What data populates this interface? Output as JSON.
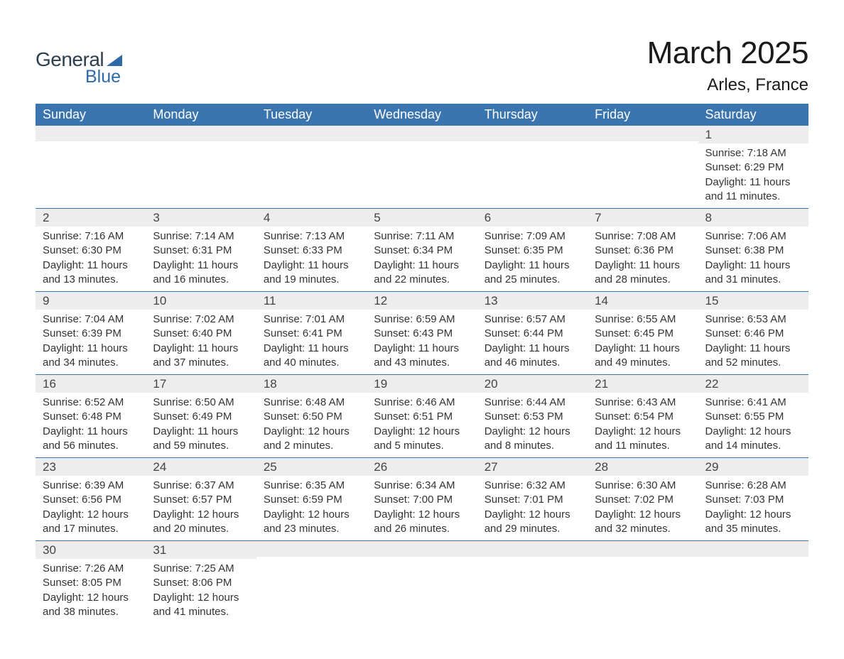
{
  "logo": {
    "text_general": "General",
    "text_blue": "Blue"
  },
  "title": "March 2025",
  "location": "Arles, France",
  "colors": {
    "header_bg": "#3a75b0",
    "header_text": "#ffffff",
    "daynum_bg": "#ededed",
    "border": "#3a75b0",
    "logo_accent": "#2f6aa8",
    "page_bg": "#ffffff"
  },
  "typography": {
    "title_fontsize": 44,
    "location_fontsize": 24,
    "weekday_fontsize": 18,
    "daynum_fontsize": 17,
    "body_fontsize": 15
  },
  "weekdays": [
    "Sunday",
    "Monday",
    "Tuesday",
    "Wednesday",
    "Thursday",
    "Friday",
    "Saturday"
  ],
  "weeks": [
    [
      {
        "n": "",
        "sunrise": "",
        "sunset": "",
        "dayl": ""
      },
      {
        "n": "",
        "sunrise": "",
        "sunset": "",
        "dayl": ""
      },
      {
        "n": "",
        "sunrise": "",
        "sunset": "",
        "dayl": ""
      },
      {
        "n": "",
        "sunrise": "",
        "sunset": "",
        "dayl": ""
      },
      {
        "n": "",
        "sunrise": "",
        "sunset": "",
        "dayl": ""
      },
      {
        "n": "",
        "sunrise": "",
        "sunset": "",
        "dayl": ""
      },
      {
        "n": "1",
        "sunrise": "Sunrise: 7:18 AM",
        "sunset": "Sunset: 6:29 PM",
        "dayl": "Daylight: 11 hours and 11 minutes."
      }
    ],
    [
      {
        "n": "2",
        "sunrise": "Sunrise: 7:16 AM",
        "sunset": "Sunset: 6:30 PM",
        "dayl": "Daylight: 11 hours and 13 minutes."
      },
      {
        "n": "3",
        "sunrise": "Sunrise: 7:14 AM",
        "sunset": "Sunset: 6:31 PM",
        "dayl": "Daylight: 11 hours and 16 minutes."
      },
      {
        "n": "4",
        "sunrise": "Sunrise: 7:13 AM",
        "sunset": "Sunset: 6:33 PM",
        "dayl": "Daylight: 11 hours and 19 minutes."
      },
      {
        "n": "5",
        "sunrise": "Sunrise: 7:11 AM",
        "sunset": "Sunset: 6:34 PM",
        "dayl": "Daylight: 11 hours and 22 minutes."
      },
      {
        "n": "6",
        "sunrise": "Sunrise: 7:09 AM",
        "sunset": "Sunset: 6:35 PM",
        "dayl": "Daylight: 11 hours and 25 minutes."
      },
      {
        "n": "7",
        "sunrise": "Sunrise: 7:08 AM",
        "sunset": "Sunset: 6:36 PM",
        "dayl": "Daylight: 11 hours and 28 minutes."
      },
      {
        "n": "8",
        "sunrise": "Sunrise: 7:06 AM",
        "sunset": "Sunset: 6:38 PM",
        "dayl": "Daylight: 11 hours and 31 minutes."
      }
    ],
    [
      {
        "n": "9",
        "sunrise": "Sunrise: 7:04 AM",
        "sunset": "Sunset: 6:39 PM",
        "dayl": "Daylight: 11 hours and 34 minutes."
      },
      {
        "n": "10",
        "sunrise": "Sunrise: 7:02 AM",
        "sunset": "Sunset: 6:40 PM",
        "dayl": "Daylight: 11 hours and 37 minutes."
      },
      {
        "n": "11",
        "sunrise": "Sunrise: 7:01 AM",
        "sunset": "Sunset: 6:41 PM",
        "dayl": "Daylight: 11 hours and 40 minutes."
      },
      {
        "n": "12",
        "sunrise": "Sunrise: 6:59 AM",
        "sunset": "Sunset: 6:43 PM",
        "dayl": "Daylight: 11 hours and 43 minutes."
      },
      {
        "n": "13",
        "sunrise": "Sunrise: 6:57 AM",
        "sunset": "Sunset: 6:44 PM",
        "dayl": "Daylight: 11 hours and 46 minutes."
      },
      {
        "n": "14",
        "sunrise": "Sunrise: 6:55 AM",
        "sunset": "Sunset: 6:45 PM",
        "dayl": "Daylight: 11 hours and 49 minutes."
      },
      {
        "n": "15",
        "sunrise": "Sunrise: 6:53 AM",
        "sunset": "Sunset: 6:46 PM",
        "dayl": "Daylight: 11 hours and 52 minutes."
      }
    ],
    [
      {
        "n": "16",
        "sunrise": "Sunrise: 6:52 AM",
        "sunset": "Sunset: 6:48 PM",
        "dayl": "Daylight: 11 hours and 56 minutes."
      },
      {
        "n": "17",
        "sunrise": "Sunrise: 6:50 AM",
        "sunset": "Sunset: 6:49 PM",
        "dayl": "Daylight: 11 hours and 59 minutes."
      },
      {
        "n": "18",
        "sunrise": "Sunrise: 6:48 AM",
        "sunset": "Sunset: 6:50 PM",
        "dayl": "Daylight: 12 hours and 2 minutes."
      },
      {
        "n": "19",
        "sunrise": "Sunrise: 6:46 AM",
        "sunset": "Sunset: 6:51 PM",
        "dayl": "Daylight: 12 hours and 5 minutes."
      },
      {
        "n": "20",
        "sunrise": "Sunrise: 6:44 AM",
        "sunset": "Sunset: 6:53 PM",
        "dayl": "Daylight: 12 hours and 8 minutes."
      },
      {
        "n": "21",
        "sunrise": "Sunrise: 6:43 AM",
        "sunset": "Sunset: 6:54 PM",
        "dayl": "Daylight: 12 hours and 11 minutes."
      },
      {
        "n": "22",
        "sunrise": "Sunrise: 6:41 AM",
        "sunset": "Sunset: 6:55 PM",
        "dayl": "Daylight: 12 hours and 14 minutes."
      }
    ],
    [
      {
        "n": "23",
        "sunrise": "Sunrise: 6:39 AM",
        "sunset": "Sunset: 6:56 PM",
        "dayl": "Daylight: 12 hours and 17 minutes."
      },
      {
        "n": "24",
        "sunrise": "Sunrise: 6:37 AM",
        "sunset": "Sunset: 6:57 PM",
        "dayl": "Daylight: 12 hours and 20 minutes."
      },
      {
        "n": "25",
        "sunrise": "Sunrise: 6:35 AM",
        "sunset": "Sunset: 6:59 PM",
        "dayl": "Daylight: 12 hours and 23 minutes."
      },
      {
        "n": "26",
        "sunrise": "Sunrise: 6:34 AM",
        "sunset": "Sunset: 7:00 PM",
        "dayl": "Daylight: 12 hours and 26 minutes."
      },
      {
        "n": "27",
        "sunrise": "Sunrise: 6:32 AM",
        "sunset": "Sunset: 7:01 PM",
        "dayl": "Daylight: 12 hours and 29 minutes."
      },
      {
        "n": "28",
        "sunrise": "Sunrise: 6:30 AM",
        "sunset": "Sunset: 7:02 PM",
        "dayl": "Daylight: 12 hours and 32 minutes."
      },
      {
        "n": "29",
        "sunrise": "Sunrise: 6:28 AM",
        "sunset": "Sunset: 7:03 PM",
        "dayl": "Daylight: 12 hours and 35 minutes."
      }
    ],
    [
      {
        "n": "30",
        "sunrise": "Sunrise: 7:26 AM",
        "sunset": "Sunset: 8:05 PM",
        "dayl": "Daylight: 12 hours and 38 minutes."
      },
      {
        "n": "31",
        "sunrise": "Sunrise: 7:25 AM",
        "sunset": "Sunset: 8:06 PM",
        "dayl": "Daylight: 12 hours and 41 minutes."
      },
      {
        "n": "",
        "sunrise": "",
        "sunset": "",
        "dayl": ""
      },
      {
        "n": "",
        "sunrise": "",
        "sunset": "",
        "dayl": ""
      },
      {
        "n": "",
        "sunrise": "",
        "sunset": "",
        "dayl": ""
      },
      {
        "n": "",
        "sunrise": "",
        "sunset": "",
        "dayl": ""
      },
      {
        "n": "",
        "sunrise": "",
        "sunset": "",
        "dayl": ""
      }
    ]
  ]
}
